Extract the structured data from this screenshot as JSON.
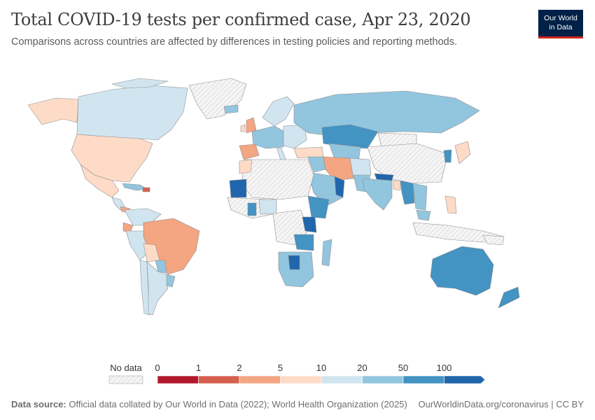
{
  "header": {
    "title": "Total COVID-19 tests per confirmed case, Apr 23, 2020",
    "subtitle": "Comparisons across countries are affected by differences in testing policies and reporting methods."
  },
  "logo": {
    "line1": "Our World",
    "line2": "in Data"
  },
  "legend": {
    "no_data_label": "No data",
    "ticks": [
      "0",
      "1",
      "2",
      "5",
      "10",
      "20",
      "50",
      "100"
    ],
    "bins": [
      {
        "from": "0",
        "to": "1",
        "color": "#b2182b"
      },
      {
        "from": "1",
        "to": "2",
        "color": "#d6604d"
      },
      {
        "from": "2",
        "to": "5",
        "color": "#f4a582"
      },
      {
        "from": "5",
        "to": "10",
        "color": "#fddbc7"
      },
      {
        "from": "10",
        "to": "20",
        "color": "#d1e5f0"
      },
      {
        "from": "20",
        "to": "50",
        "color": "#92c5de"
      },
      {
        "from": "50",
        "to": "100",
        "color": "#4393c3"
      },
      {
        "from": "100",
        "to": "",
        "color": "#2166ac"
      }
    ]
  },
  "footer": {
    "source_label": "Data source:",
    "source_text": "Official data collated by Our World in Data (2022); World Health Organization (2025)",
    "url_license": "OurWorldinData.org/coronavirus | CC BY"
  },
  "colors": {
    "no_data": "#eeeeee",
    "border": "#9a9a9a"
  }
}
